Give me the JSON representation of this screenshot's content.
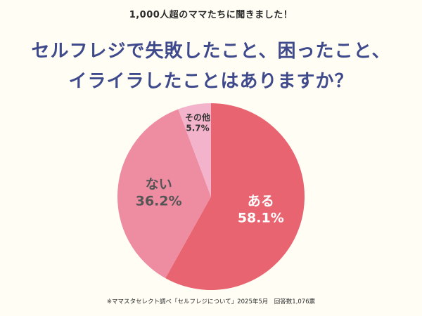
{
  "header": {
    "kicker": "1,000人超のママたちに聞きました！",
    "title_line1": "セルフレジで失敗したこと、困ったこと、",
    "title_line2": "イライラしたことはありますか？"
  },
  "footnote": "※ママスタセレクト調べ「セルフレジについて」2025年5月　回答数1,076票",
  "colors": {
    "background": "#FFFDF4",
    "title": "#3F4A8C",
    "slice_aru": "#E86470",
    "slice_nai": "#EE8CA2",
    "slice_other": "#F3B3CA"
  },
  "chart_data": {
    "type": "pie",
    "start": "12 o'clock",
    "direction": "clockwise",
    "slices": [
      {
        "label": "ある",
        "value": 58.1,
        "display": "58.1%",
        "color": "#E86470",
        "text_color": "#FFFFFF"
      },
      {
        "label": "ない",
        "value": 36.2,
        "display": "36.2%",
        "color": "#EE8CA2",
        "text_color": "#555555"
      },
      {
        "label": "その他",
        "value": 5.7,
        "display": "5.7%",
        "color": "#F3B3CA",
        "text_color": "#333333"
      }
    ]
  }
}
